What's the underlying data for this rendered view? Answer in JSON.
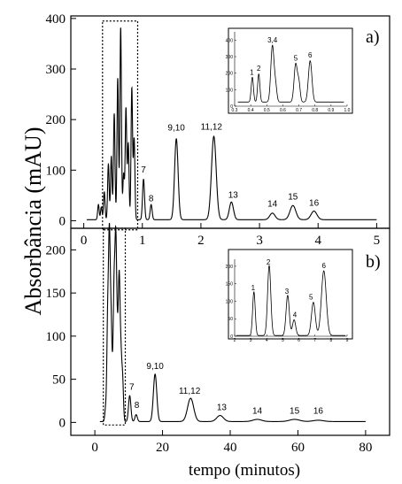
{
  "chart_data": {
    "type": "line",
    "ylabel": "Absorbância (mAU)",
    "xlabel": "tempo (minutos)",
    "panels": [
      {
        "label": "a)",
        "xlim": [
          -0.1,
          5.1
        ],
        "ylim": [
          -15,
          405
        ],
        "xticks": [
          "0",
          "1",
          "2",
          "3",
          "4",
          "5"
        ],
        "yticks": [
          "0",
          "100",
          "200",
          "300",
          "400"
        ],
        "baseline": 2,
        "peaks": [
          {
            "t": 0.25,
            "h": 30,
            "w": 0.013
          },
          {
            "t": 0.3,
            "h": 25,
            "w": 0.013
          },
          {
            "t": 0.35,
            "h": 55,
            "w": 0.013
          },
          {
            "t": 0.42,
            "h": 110,
            "w": 0.013
          },
          {
            "t": 0.47,
            "h": 125,
            "w": 0.013
          },
          {
            "t": 0.52,
            "h": 210,
            "w": 0.013
          },
          {
            "t": 0.58,
            "h": 280,
            "w": 0.013
          },
          {
            "t": 0.63,
            "h": 380,
            "w": 0.013
          },
          {
            "t": 0.68,
            "h": 90,
            "w": 0.013
          },
          {
            "t": 0.72,
            "h": 220,
            "w": 0.013
          },
          {
            "t": 0.76,
            "h": 150,
            "w": 0.013
          },
          {
            "t": 0.82,
            "h": 260,
            "w": 0.013
          },
          {
            "t": 0.86,
            "h": 160,
            "w": 0.013
          },
          {
            "t": 1.02,
            "h": 80,
            "w": 0.017
          },
          {
            "t": 1.15,
            "h": 30,
            "w": 0.017
          },
          {
            "t": 1.58,
            "h": 160,
            "w": 0.03
          },
          {
            "t": 2.22,
            "h": 165,
            "w": 0.04
          },
          {
            "t": 2.52,
            "h": 35,
            "w": 0.035
          },
          {
            "t": 3.22,
            "h": 13,
            "w": 0.045
          },
          {
            "t": 3.57,
            "h": 28,
            "w": 0.05
          },
          {
            "t": 3.93,
            "h": 17,
            "w": 0.05
          }
        ],
        "labels": [
          {
            "text": "7",
            "t": 1.02,
            "v": 95
          },
          {
            "text": "8",
            "t": 1.15,
            "v": 38
          },
          {
            "text": "9,10",
            "t": 1.58,
            "v": 178
          },
          {
            "text": "11,12",
            "t": 2.18,
            "v": 180
          },
          {
            "text": "13",
            "t": 2.55,
            "v": 45
          },
          {
            "text": "14",
            "t": 3.22,
            "v": 28
          },
          {
            "text": "15",
            "t": 3.57,
            "v": 42
          },
          {
            "text": "16",
            "t": 3.93,
            "v": 30
          }
        ],
        "box": {
          "t1": 0.32,
          "t2": 0.92,
          "v1": -18,
          "v2": 395
        },
        "inset": {
          "xticks": [
            "0.3",
            "0.4",
            "0.5",
            "0.6",
            "0.7",
            "0.8",
            "0.9",
            "1.0"
          ],
          "yticks": [
            "0",
            "100",
            "200",
            "300",
            "400"
          ],
          "xlim": [
            0.3,
            1.0
          ],
          "ylim": [
            0,
            450
          ],
          "baseline": 25,
          "peaks": [
            {
              "t": 0.41,
              "h": 150,
              "w": 0.007
            },
            {
              "t": 0.45,
              "h": 170,
              "w": 0.007
            },
            {
              "t": 0.535,
              "h": 340,
              "w": 0.01
            },
            {
              "t": 0.555,
              "h": 90,
              "w": 0.008
            },
            {
              "t": 0.68,
              "h": 230,
              "w": 0.01
            },
            {
              "t": 0.7,
              "h": 110,
              "w": 0.008
            },
            {
              "t": 0.77,
              "h": 250,
              "w": 0.011
            }
          ],
          "labels": [
            {
              "text": "1",
              "t": 0.407,
              "v": 190
            },
            {
              "text": "2",
              "t": 0.45,
              "v": 215
            },
            {
              "text": "3,4",
              "t": 0.535,
              "v": 385
            },
            {
              "text": "5",
              "t": 0.68,
              "v": 275
            },
            {
              "text": "6",
              "t": 0.77,
              "v": 295
            }
          ]
        }
      },
      {
        "label": "b)",
        "xlim": [
          -5,
          85
        ],
        "ylim": [
          -15,
          225
        ],
        "xticks": [
          "0",
          "20",
          "40",
          "60",
          "80"
        ],
        "yticks": [
          "0",
          "50",
          "100",
          "150",
          "200"
        ],
        "baseline": 1,
        "peaks": [
          {
            "t": 3.2,
            "h": 15,
            "w": 0.25
          },
          {
            "t": 3.8,
            "h": 115,
            "w": 0.25
          },
          {
            "t": 4.3,
            "h": 200,
            "w": 0.25
          },
          {
            "t": 4.8,
            "h": 105,
            "w": 0.25
          },
          {
            "t": 5.3,
            "h": 35,
            "w": 0.25
          },
          {
            "t": 5.7,
            "h": 140,
            "w": 0.25
          },
          {
            "t": 6.2,
            "h": 195,
            "w": 0.25
          },
          {
            "t": 6.7,
            "h": 80,
            "w": 0.25
          },
          {
            "t": 7.2,
            "h": 155,
            "w": 0.25
          },
          {
            "t": 7.7,
            "h": 70,
            "w": 0.25
          },
          {
            "t": 8.2,
            "h": 48,
            "w": 0.25
          },
          {
            "t": 10.3,
            "h": 30,
            "w": 0.35
          },
          {
            "t": 12.2,
            "h": 8,
            "w": 0.35
          },
          {
            "t": 17.8,
            "h": 55,
            "w": 0.5
          },
          {
            "t": 28.3,
            "h": 27,
            "w": 0.9
          },
          {
            "t": 37.0,
            "h": 7,
            "w": 1.0
          },
          {
            "t": 48.0,
            "h": 2.5,
            "w": 1.3
          },
          {
            "t": 59.0,
            "h": 2.5,
            "w": 1.5
          },
          {
            "t": 66.0,
            "h": 1.5,
            "w": 1.5
          }
        ],
        "labels": [
          {
            "text": "7",
            "t": 10.9,
            "v": 38
          },
          {
            "text": "8",
            "t": 12.4,
            "v": 17
          },
          {
            "text": "9,10",
            "t": 17.8,
            "v": 62
          },
          {
            "text": "11,12",
            "t": 28.0,
            "v": 33
          },
          {
            "text": "13",
            "t": 37.5,
            "v": 14
          },
          {
            "text": "14",
            "t": 48.0,
            "v": 10
          },
          {
            "text": "15",
            "t": 59.0,
            "v": 10
          },
          {
            "text": "16",
            "t": 66.0,
            "v": 10
          }
        ],
        "box": {
          "t1": 2.5,
          "t2": 9.0,
          "v1": -3,
          "v2": 225
        },
        "inset": {
          "xticks": [
            "2",
            "3",
            "4",
            "5",
            "6",
            "7",
            "8",
            "9"
          ],
          "yticks": [
            "0",
            "50",
            "100",
            "150",
            "200"
          ],
          "xlim": [
            2,
            9
          ],
          "ylim": [
            0,
            220
          ],
          "baseline": 2,
          "peaks": [
            {
              "t": 3.2,
              "h": 125,
              "w": 0.08
            },
            {
              "t": 4.15,
              "h": 200,
              "w": 0.1
            },
            {
              "t": 5.3,
              "h": 115,
              "w": 0.1
            },
            {
              "t": 5.7,
              "h": 45,
              "w": 0.1
            },
            {
              "t": 6.9,
              "h": 95,
              "w": 0.12
            },
            {
              "t": 7.55,
              "h": 185,
              "w": 0.15
            }
          ],
          "labels": [
            {
              "text": "1",
              "t": 3.15,
              "v": 132
            },
            {
              "text": "2",
              "t": 4.1,
              "v": 205
            },
            {
              "text": "3",
              "t": 5.25,
              "v": 122
            },
            {
              "text": "4",
              "t": 5.75,
              "v": 55
            },
            {
              "text": "5",
              "t": 6.75,
              "v": 105
            },
            {
              "text": "6",
              "t": 7.55,
              "v": 195
            }
          ]
        }
      }
    ]
  }
}
